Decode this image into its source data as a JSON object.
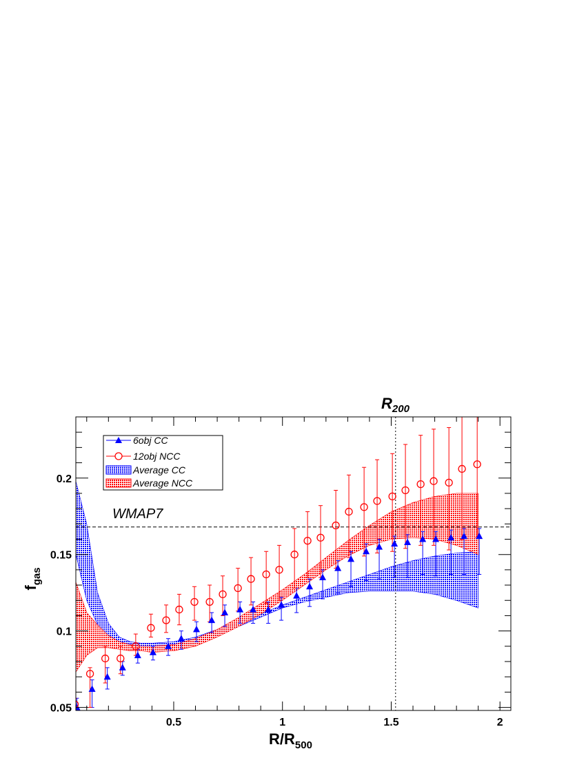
{
  "chart_data": {
    "type": "scatter",
    "xlabel": "R/R",
    "xlabel_sub": "500",
    "ylabel": "f",
    "ylabel_sub": "gas",
    "xlim": [
      0.05,
      2.05
    ],
    "ylim": [
      0.048,
      0.24
    ],
    "xticks": [
      0.5,
      1,
      1.5,
      2
    ],
    "xtick_labels": [
      "0.5",
      "1",
      "1.5",
      "2"
    ],
    "yticks": [
      0.05,
      0.1,
      0.15,
      0.2
    ],
    "ytick_labels": [
      "0.05",
      "0.1",
      "0.15",
      "0.2"
    ],
    "reference_lines": {
      "wmap7": {
        "label": "WMAP7",
        "y": 0.168
      },
      "r200": {
        "label_main": "R",
        "label_sub": "200",
        "x": 1.52
      }
    },
    "series": [
      {
        "name": "6obj CC",
        "marker": "filled-triangle",
        "color": "#0000ff",
        "x": [
          0.05,
          0.12,
          0.19,
          0.26,
          0.33,
          0.4,
          0.47,
          0.53,
          0.6,
          0.67,
          0.73,
          0.8,
          0.86,
          0.93,
          0.99,
          1.06,
          1.12,
          1.18,
          1.25,
          1.31,
          1.38,
          1.44,
          1.51,
          1.57,
          1.64,
          1.7,
          1.77,
          1.83,
          1.9
        ],
        "y": [
          0.05,
          0.062,
          0.07,
          0.076,
          0.084,
          0.086,
          0.09,
          0.095,
          0.101,
          0.107,
          0.112,
          0.114,
          0.114,
          0.114,
          0.117,
          0.123,
          0.129,
          0.135,
          0.141,
          0.147,
          0.152,
          0.155,
          0.157,
          0.158,
          0.16,
          0.16,
          0.161,
          0.162,
          0.162
        ],
        "err_lo": [
          0.014,
          0.012,
          0.008,
          0.005,
          0.005,
          0.005,
          0.006,
          0.007,
          0.008,
          0.008,
          0.009,
          0.009,
          0.009,
          0.009,
          0.01,
          0.011,
          0.013,
          0.014,
          0.016,
          0.018,
          0.019,
          0.021,
          0.022,
          0.023,
          0.023,
          0.024,
          0.024,
          0.025,
          0.025
        ],
        "err_hi": [
          0.006,
          0.006,
          0.006,
          0.004,
          0.004,
          0.004,
          0.005,
          0.005,
          0.005,
          0.005,
          0.005,
          0.005,
          0.005,
          0.005,
          0.005,
          0.005,
          0.005,
          0.005,
          0.005,
          0.005,
          0.005,
          0.005,
          0.005,
          0.005,
          0.005,
          0.005,
          0.005,
          0.005,
          0.005
        ]
      },
      {
        "name": "12obj NCC",
        "marker": "open-circle",
        "color": "#ff0000",
        "x": [
          0.05,
          0.12,
          0.19,
          0.26,
          0.33,
          0.4,
          0.47,
          0.53,
          0.6,
          0.67,
          0.73,
          0.8,
          0.86,
          0.93,
          0.99,
          1.06,
          1.12,
          1.18,
          1.25,
          1.31,
          1.38,
          1.44,
          1.51,
          1.57,
          1.64,
          1.7,
          1.77,
          1.83,
          1.9
        ],
        "y": [
          0.052,
          0.072,
          0.082,
          0.082,
          0.09,
          0.102,
          0.107,
          0.114,
          0.119,
          0.119,
          0.124,
          0.128,
          0.134,
          0.137,
          0.14,
          0.15,
          0.159,
          0.161,
          0.169,
          0.178,
          0.181,
          0.185,
          0.188,
          0.192,
          0.196,
          0.198,
          0.197,
          0.206,
          0.209
        ],
        "err_lo": [
          0.004,
          0.022,
          0.016,
          0.01,
          0.006,
          0.006,
          0.008,
          0.01,
          0.012,
          0.013,
          0.014,
          0.015,
          0.017,
          0.019,
          0.02,
          0.022,
          0.024,
          0.026,
          0.028,
          0.03,
          0.032,
          0.034,
          0.036,
          0.038,
          0.04,
          0.042,
          0.044,
          0.046,
          0.048
        ],
        "err_hi": [
          0.004,
          0.004,
          0.008,
          0.008,
          0.008,
          0.009,
          0.01,
          0.01,
          0.01,
          0.011,
          0.012,
          0.013,
          0.014,
          0.015,
          0.016,
          0.017,
          0.019,
          0.021,
          0.023,
          0.024,
          0.026,
          0.027,
          0.028,
          0.03,
          0.032,
          0.034,
          0.036,
          0.04,
          0.045
        ]
      }
    ],
    "bands": [
      {
        "name": "Average CC",
        "color": "#0000ff",
        "x": [
          0.05,
          0.1,
          0.15,
          0.2,
          0.25,
          0.3,
          0.35,
          0.4,
          0.5,
          0.6,
          0.7,
          0.8,
          0.9,
          1.0,
          1.1,
          1.2,
          1.3,
          1.4,
          1.5,
          1.6,
          1.7,
          1.8,
          1.9
        ],
        "lower": [
          0.15,
          0.12,
          0.104,
          0.097,
          0.093,
          0.091,
          0.09,
          0.089,
          0.089,
          0.092,
          0.097,
          0.103,
          0.109,
          0.115,
          0.119,
          0.122,
          0.125,
          0.126,
          0.126,
          0.126,
          0.124,
          0.12,
          0.115
        ],
        "upper": [
          0.198,
          0.17,
          0.125,
          0.105,
          0.096,
          0.093,
          0.092,
          0.092,
          0.093,
          0.096,
          0.101,
          0.106,
          0.111,
          0.117,
          0.122,
          0.127,
          0.132,
          0.137,
          0.142,
          0.146,
          0.149,
          0.151,
          0.152
        ]
      },
      {
        "name": "Average NCC",
        "color": "#ff0000",
        "x": [
          0.05,
          0.1,
          0.15,
          0.2,
          0.25,
          0.3,
          0.35,
          0.4,
          0.5,
          0.6,
          0.7,
          0.8,
          0.9,
          1.0,
          1.1,
          1.2,
          1.3,
          1.4,
          1.5,
          1.6,
          1.7,
          1.8,
          1.9
        ],
        "lower": [
          0.073,
          0.084,
          0.089,
          0.089,
          0.088,
          0.087,
          0.087,
          0.086,
          0.087,
          0.09,
          0.096,
          0.103,
          0.111,
          0.12,
          0.13,
          0.14,
          0.149,
          0.156,
          0.16,
          0.161,
          0.16,
          0.156,
          0.15
        ],
        "upper": [
          0.132,
          0.112,
          0.104,
          0.097,
          0.093,
          0.091,
          0.09,
          0.09,
          0.091,
          0.095,
          0.101,
          0.109,
          0.118,
          0.127,
          0.137,
          0.148,
          0.159,
          0.169,
          0.178,
          0.184,
          0.188,
          0.19,
          0.19
        ]
      }
    ],
    "legend": {
      "position": "top-left",
      "entries": [
        "6obj CC",
        "12obj NCC",
        "Average CC",
        "Average NCC"
      ]
    }
  }
}
